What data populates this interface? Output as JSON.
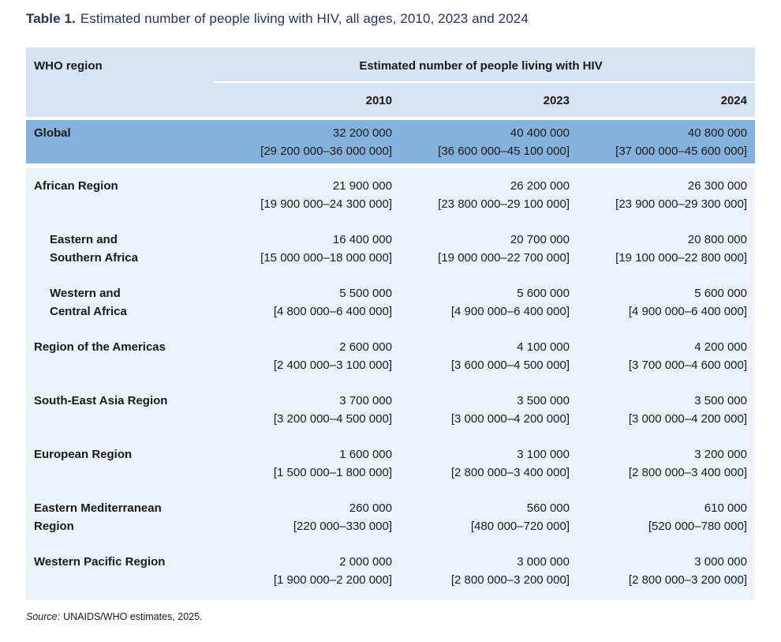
{
  "title": {
    "label": "Table 1.",
    "text": "Estimated number of people living with HIV, all ages, 2010, 2023 and 2024"
  },
  "table": {
    "region_column_header": "WHO region",
    "group_header": "Estimated number of people living with HIV",
    "years": [
      "2010",
      "2023",
      "2024"
    ],
    "rows": [
      {
        "region": "Global",
        "cells": [
          {
            "value": "32 200 000",
            "range": "[29 200 000–36 000 000]"
          },
          {
            "value": "40 400 000",
            "range": "[36 600 000–45 100 000]"
          },
          {
            "value": "40 800 000",
            "range": "[37 000 000–45 600 000]"
          }
        ]
      },
      {
        "region": "African Region",
        "cells": [
          {
            "value": "21 900 000",
            "range": "[19 900 000–24 300 000]"
          },
          {
            "value": "26 200 000",
            "range": "[23 800 000–29 100 000]"
          },
          {
            "value": "26 300 000",
            "range": "[23 900 000–29 300 000]"
          }
        ]
      },
      {
        "region": "Eastern and\nSouthern Africa",
        "cells": [
          {
            "value": "16 400 000",
            "range": "[15 000 000–18 000 000]"
          },
          {
            "value": "20 700 000",
            "range": "[19 000 000–22 700 000]"
          },
          {
            "value": "20 800 000",
            "range": "[19 100 000–22 800 000]"
          }
        ]
      },
      {
        "region": "Western and\nCentral Africa",
        "cells": [
          {
            "value": "5 500 000",
            "range": "[4 800 000–6 400 000]"
          },
          {
            "value": "5 600 000",
            "range": "[4 900 000–6 400 000]"
          },
          {
            "value": "5 600 000",
            "range": "[4 900 000–6 400 000]"
          }
        ]
      },
      {
        "region": "Region of the Americas",
        "cells": [
          {
            "value": "2 600 000",
            "range": "[2 400 000–3 100 000]"
          },
          {
            "value": "4 100 000",
            "range": "[3 600 000–4 500 000]"
          },
          {
            "value": "4 200 000",
            "range": "[3 700 000–4 600 000]"
          }
        ]
      },
      {
        "region": "South-East Asia Region",
        "cells": [
          {
            "value": "3 700 000",
            "range": "[3 200 000–4 500 000]"
          },
          {
            "value": "3 500 000",
            "range": "[3 000 000–4 200 000]"
          },
          {
            "value": "3 500 000",
            "range": "[3 000 000–4 200 000]"
          }
        ]
      },
      {
        "region": "European Region",
        "cells": [
          {
            "value": "1 600 000",
            "range": "[1 500 000–1 800 000]"
          },
          {
            "value": "3 100 000",
            "range": "[2 800 000–3 400 000]"
          },
          {
            "value": "3 200 000",
            "range": "[2 800 000–3 400 000]"
          }
        ]
      },
      {
        "region": "Eastern Mediterranean\nRegion",
        "cells": [
          {
            "value": "260 000",
            "range": "[220 000–330 000]"
          },
          {
            "value": "560 000",
            "range": "[480 000–720 000]"
          },
          {
            "value": "610 000",
            "range": "[520 000–780 000]"
          }
        ]
      },
      {
        "region": "Western Pacific Region",
        "cells": [
          {
            "value": "2 000 000",
            "range": "[1 900 000–2 200 000]"
          },
          {
            "value": "3 000 000",
            "range": "[2 800 000–3 200 000]"
          },
          {
            "value": "3 000 000",
            "range": "[2 800 000–3 200 000]"
          }
        ]
      }
    ]
  },
  "source": {
    "label": "Source:",
    "text": "UNAIDS/WHO estimates, 2025."
  },
  "colors": {
    "header_bg": "#d6e3f3",
    "global_row_bg": "#85b2dd",
    "region_rows_bg": "#ebf2fa",
    "title_color": "#28325f",
    "text_color": "#1a1a1a"
  }
}
